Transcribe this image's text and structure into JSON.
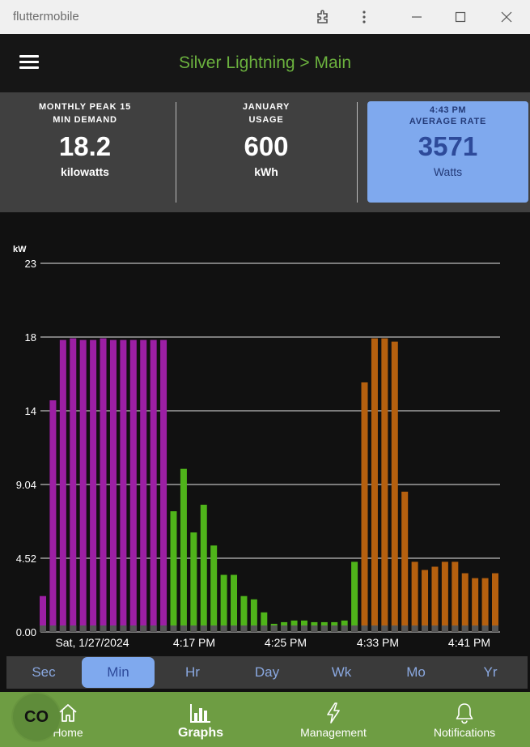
{
  "window": {
    "title": "fluttermobile"
  },
  "header": {
    "title": "Silver Lightning > Main"
  },
  "stats": {
    "peak": {
      "label1": "MONTHLY PEAK 15",
      "label2": "MIN DEMAND",
      "value": "18.2",
      "unit": "kilowatts"
    },
    "usage": {
      "label1": "JANUARY",
      "label2": "USAGE",
      "value": "600",
      "unit": "kWh"
    },
    "rate": {
      "time": "4:43 PM",
      "label": "AVERAGE RATE",
      "value": "3571",
      "unit": "Watts"
    }
  },
  "chart_data": {
    "type": "bar",
    "ylabel": "kW",
    "yticks": [
      "23",
      "18",
      "14",
      "9.04",
      "4.52",
      "0.00"
    ],
    "ylim": [
      0,
      22.6
    ],
    "xtick_labels": [
      "Sat, 1/27/2024",
      "4:17 PM",
      "4:25 PM",
      "4:33 PM",
      "4:41 PM"
    ],
    "grid": true,
    "colors": {
      "purple": "#9c1fa4",
      "green": "#4fb41a",
      "orange": "#b5600f"
    },
    "bars": [
      {
        "c": "purple",
        "v": 2.2
      },
      {
        "c": "purple",
        "v": 14.2
      },
      {
        "c": "purple",
        "v": 17.9
      },
      {
        "c": "purple",
        "v": 18.0
      },
      {
        "c": "purple",
        "v": 17.9
      },
      {
        "c": "purple",
        "v": 17.9
      },
      {
        "c": "purple",
        "v": 18.0
      },
      {
        "c": "purple",
        "v": 17.9
      },
      {
        "c": "purple",
        "v": 17.9
      },
      {
        "c": "purple",
        "v": 17.9
      },
      {
        "c": "purple",
        "v": 17.9
      },
      {
        "c": "purple",
        "v": 17.9
      },
      {
        "c": "purple",
        "v": 17.9
      },
      {
        "c": "green",
        "v": 7.4
      },
      {
        "c": "green",
        "v": 10.0
      },
      {
        "c": "green",
        "v": 6.1
      },
      {
        "c": "green",
        "v": 7.8
      },
      {
        "c": "green",
        "v": 5.3
      },
      {
        "c": "green",
        "v": 3.5
      },
      {
        "c": "green",
        "v": 3.5
      },
      {
        "c": "green",
        "v": 2.2
      },
      {
        "c": "green",
        "v": 2.0
      },
      {
        "c": "green",
        "v": 1.2
      },
      {
        "c": "green",
        "v": 0.5
      },
      {
        "c": "green",
        "v": 0.6
      },
      {
        "c": "green",
        "v": 0.7
      },
      {
        "c": "green",
        "v": 0.7
      },
      {
        "c": "green",
        "v": 0.6
      },
      {
        "c": "green",
        "v": 0.6
      },
      {
        "c": "green",
        "v": 0.6
      },
      {
        "c": "green",
        "v": 0.7
      },
      {
        "c": "green",
        "v": 4.3
      },
      {
        "c": "orange",
        "v": 15.3
      },
      {
        "c": "orange",
        "v": 18.0
      },
      {
        "c": "orange",
        "v": 18.0
      },
      {
        "c": "orange",
        "v": 17.8
      },
      {
        "c": "orange",
        "v": 8.6
      },
      {
        "c": "orange",
        "v": 4.3
      },
      {
        "c": "orange",
        "v": 3.8
      },
      {
        "c": "orange",
        "v": 4.0
      },
      {
        "c": "orange",
        "v": 4.3
      },
      {
        "c": "orange",
        "v": 4.3
      },
      {
        "c": "orange",
        "v": 3.6
      },
      {
        "c": "orange",
        "v": 3.3
      },
      {
        "c": "orange",
        "v": 3.3
      },
      {
        "c": "orange",
        "v": 3.6
      }
    ]
  },
  "ranges": [
    "Sec",
    "Min",
    "Hr",
    "Day",
    "Wk",
    "Mo",
    "Yr"
  ],
  "active_range": "Min",
  "fab": {
    "label": "CO"
  },
  "nav": [
    {
      "label": "Home",
      "icon": "home-icon"
    },
    {
      "label": "Graphs",
      "icon": "bar-chart-icon"
    },
    {
      "label": "Management",
      "icon": "lightning-icon"
    },
    {
      "label": "Notifications",
      "icon": "bell-icon"
    }
  ]
}
